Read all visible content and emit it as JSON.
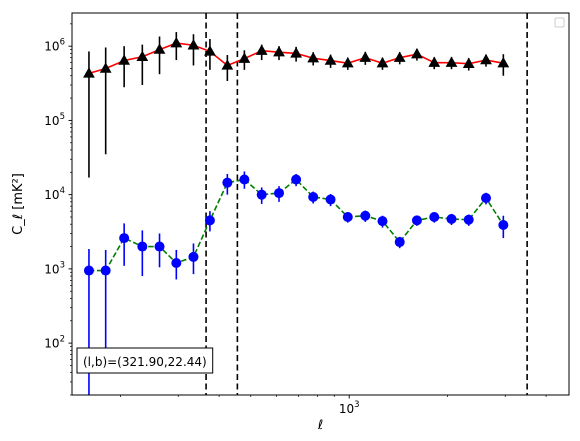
{
  "chart_data": {
    "type": "scatter",
    "title": "",
    "xlabel": "ℓ",
    "ylabel": "C_ℓ [mK²]",
    "xscale": "log",
    "yscale": "log",
    "xlim": [
      142,
      4700
    ],
    "ylim": [
      20,
      2800000
    ],
    "grid": false,
    "legend": {
      "placement": "top-right",
      "entries": []
    },
    "x_tick_labels": [
      {
        "value": 1000,
        "base": "10",
        "exp": "3"
      }
    ],
    "y_tick_labels": [
      {
        "value": 100,
        "base": "10",
        "exp": "2"
      },
      {
        "value": 1000,
        "base": "10",
        "exp": "3"
      },
      {
        "value": 10000,
        "base": "10",
        "exp": "4"
      },
      {
        "value": 100000,
        "base": "10",
        "exp": "5"
      },
      {
        "value": 1000000,
        "base": "10",
        "exp": "6"
      }
    ],
    "vertical_lines": [
      365,
      455,
      3500
    ],
    "annotation": "(l,b)=(321.90,22.44)",
    "series": [
      {
        "marker": "triangle",
        "marker_color": "#000000",
        "line_color": "#ff0000",
        "line_style": "solid",
        "errorbar_color": "#000000",
        "points": [
          {
            "x": 160,
            "y": 430000,
            "lo": 17000,
            "hi": 850000
          },
          {
            "x": 180,
            "y": 500000,
            "lo": 35000,
            "hi": 960000
          },
          {
            "x": 205,
            "y": 640000,
            "lo": 280000,
            "hi": 1000000
          },
          {
            "x": 233,
            "y": 720000,
            "lo": 300000,
            "hi": 1050000
          },
          {
            "x": 263,
            "y": 900000,
            "lo": 420000,
            "hi": 1350000
          },
          {
            "x": 296,
            "y": 1100000,
            "lo": 650000,
            "hi": 1550000
          },
          {
            "x": 334,
            "y": 1030000,
            "lo": 550000,
            "hi": 1450000
          },
          {
            "x": 375,
            "y": 850000,
            "lo": 480000,
            "hi": 1250000
          },
          {
            "x": 424,
            "y": 550000,
            "lo": 340000,
            "hi": 760000
          },
          {
            "x": 478,
            "y": 680000,
            "lo": 480000,
            "hi": 880000
          },
          {
            "x": 540,
            "y": 870000,
            "lo": 650000,
            "hi": 1050000
          },
          {
            "x": 610,
            "y": 830000,
            "lo": 650000,
            "hi": 1000000
          },
          {
            "x": 688,
            "y": 800000,
            "lo": 620000,
            "hi": 980000
          },
          {
            "x": 776,
            "y": 690000,
            "lo": 550000,
            "hi": 830000
          },
          {
            "x": 877,
            "y": 640000,
            "lo": 510000,
            "hi": 770000
          },
          {
            "x": 990,
            "y": 590000,
            "lo": 480000,
            "hi": 700000
          },
          {
            "x": 1120,
            "y": 700000,
            "lo": 560000,
            "hi": 840000
          },
          {
            "x": 1264,
            "y": 590000,
            "lo": 480000,
            "hi": 700000
          },
          {
            "x": 1427,
            "y": 700000,
            "lo": 570000,
            "hi": 830000
          },
          {
            "x": 1611,
            "y": 780000,
            "lo": 640000,
            "hi": 920000
          },
          {
            "x": 1820,
            "y": 600000,
            "lo": 490000,
            "hi": 710000
          },
          {
            "x": 2055,
            "y": 600000,
            "lo": 490000,
            "hi": 710000
          },
          {
            "x": 2320,
            "y": 580000,
            "lo": 470000,
            "hi": 690000
          },
          {
            "x": 2620,
            "y": 650000,
            "lo": 530000,
            "hi": 770000
          },
          {
            "x": 2960,
            "y": 590000,
            "lo": 400000,
            "hi": 780000
          }
        ]
      },
      {
        "marker": "circle",
        "marker_color": "#0000ff",
        "line_color": "#008000",
        "line_style": "dashed",
        "errorbar_color": "#0000ff",
        "points": [
          {
            "x": 160,
            "y": 950,
            "lo": 20,
            "hi": 1850
          },
          {
            "x": 180,
            "y": 950,
            "lo": 65,
            "hi": 1800
          },
          {
            "x": 205,
            "y": 2600,
            "lo": 1100,
            "hi": 4100
          },
          {
            "x": 233,
            "y": 2000,
            "lo": 800,
            "hi": 3300
          },
          {
            "x": 263,
            "y": 2000,
            "lo": 1050,
            "hi": 3000
          },
          {
            "x": 296,
            "y": 1200,
            "lo": 720,
            "hi": 1800
          },
          {
            "x": 334,
            "y": 1450,
            "lo": 850,
            "hi": 2200
          },
          {
            "x": 375,
            "y": 4500,
            "lo": 3200,
            "hi": 6000
          },
          {
            "x": 424,
            "y": 14500,
            "lo": 10000,
            "hi": 19000
          },
          {
            "x": 478,
            "y": 16000,
            "lo": 12000,
            "hi": 20500
          },
          {
            "x": 540,
            "y": 10000,
            "lo": 7500,
            "hi": 12500
          },
          {
            "x": 610,
            "y": 10500,
            "lo": 8000,
            "hi": 13000
          },
          {
            "x": 688,
            "y": 16000,
            "lo": 13000,
            "hi": 19000
          },
          {
            "x": 776,
            "y": 9300,
            "lo": 7600,
            "hi": 11000
          },
          {
            "x": 877,
            "y": 8600,
            "lo": 7000,
            "hi": 10200
          },
          {
            "x": 990,
            "y": 5000,
            "lo": 4200,
            "hi": 5800
          },
          {
            "x": 1120,
            "y": 5200,
            "lo": 4300,
            "hi": 6100
          },
          {
            "x": 1264,
            "y": 4400,
            "lo": 3600,
            "hi": 5200
          },
          {
            "x": 1427,
            "y": 2300,
            "lo": 1900,
            "hi": 2700
          },
          {
            "x": 1611,
            "y": 4500,
            "lo": 3800,
            "hi": 5200
          },
          {
            "x": 1820,
            "y": 5000,
            "lo": 4200,
            "hi": 5800
          },
          {
            "x": 2055,
            "y": 4700,
            "lo": 3900,
            "hi": 5500
          },
          {
            "x": 2320,
            "y": 4600,
            "lo": 3800,
            "hi": 5400
          },
          {
            "x": 2620,
            "y": 9000,
            "lo": 7400,
            "hi": 10600
          },
          {
            "x": 2960,
            "y": 3900,
            "lo": 2600,
            "hi": 5200
          }
        ]
      }
    ]
  }
}
